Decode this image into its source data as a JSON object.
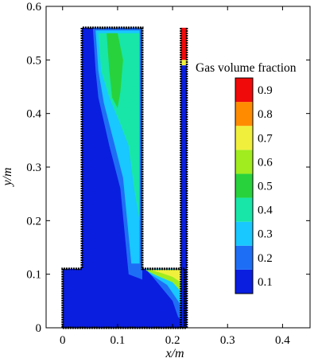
{
  "chart_data": {
    "type": "heatmap",
    "title": "",
    "xlabel": "x/m",
    "ylabel": "y/m",
    "xlim": [
      -0.03,
      0.45
    ],
    "ylim": [
      0,
      0.6
    ],
    "x_ticks": [
      "0",
      "0.1",
      "0.2",
      "0.3",
      "0.4"
    ],
    "y_ticks": [
      "0",
      "0.1",
      "0.2",
      "0.3",
      "0.4",
      "0.5",
      "0.6"
    ],
    "grid": false,
    "legend": {
      "title": "Gas volume fraction",
      "placement": "right",
      "levels": [
        "0.1",
        "0.2",
        "0.3",
        "0.4",
        "0.5",
        "0.6",
        "0.7",
        "0.8",
        "0.9"
      ],
      "colors": [
        "#0a1ee0",
        "#1e6ef5",
        "#18c8ff",
        "#18e6a8",
        "#28d23c",
        "#a0ec1e",
        "#f0f03c",
        "#ff8c00",
        "#f00a0a"
      ]
    },
    "domain_outline": [
      [
        0,
        0
      ],
      [
        0.222,
        0
      ],
      [
        0.222,
        0.11
      ],
      [
        0.215,
        0.11
      ],
      [
        0.215,
        0.11
      ],
      [
        0.145,
        0.11
      ],
      [
        0.145,
        0.56
      ],
      [
        0.035,
        0.56
      ],
      [
        0.035,
        0.11
      ],
      [
        0,
        0.11
      ]
    ],
    "riser_pipe": {
      "x": [
        0.215,
        0.226
      ],
      "y": [
        0.0,
        0.56
      ]
    },
    "gas_fraction_regions": [
      {
        "level": 0.1,
        "points": [
          [
            0,
            0
          ],
          [
            0.222,
            0
          ],
          [
            0.222,
            0.11
          ],
          [
            0.145,
            0.11
          ],
          [
            0.145,
            0.56
          ],
          [
            0.035,
            0.56
          ],
          [
            0.035,
            0.11
          ],
          [
            0,
            0.11
          ]
        ]
      },
      {
        "level": 0.2,
        "points": [
          [
            0.055,
            0.56
          ],
          [
            0.145,
            0.56
          ],
          [
            0.145,
            0.09
          ],
          [
            0.12,
            0.1
          ],
          [
            0.105,
            0.26
          ],
          [
            0.085,
            0.34
          ],
          [
            0.065,
            0.43
          ],
          [
            0.06,
            0.48
          ]
        ]
      },
      {
        "level": 0.3,
        "points": [
          [
            0.06,
            0.555
          ],
          [
            0.14,
            0.555
          ],
          [
            0.14,
            0.12
          ],
          [
            0.125,
            0.12
          ],
          [
            0.11,
            0.28
          ],
          [
            0.095,
            0.34
          ],
          [
            0.075,
            0.42
          ],
          [
            0.065,
            0.48
          ]
        ]
      },
      {
        "level": 0.4,
        "points": [
          [
            0.065,
            0.55
          ],
          [
            0.14,
            0.55
          ],
          [
            0.14,
            0.2
          ],
          [
            0.13,
            0.26
          ],
          [
            0.12,
            0.34
          ],
          [
            0.105,
            0.38
          ],
          [
            0.085,
            0.43
          ],
          [
            0.07,
            0.48
          ]
        ]
      },
      {
        "level": 0.5,
        "points": [
          [
            0.08,
            0.55
          ],
          [
            0.1,
            0.55
          ],
          [
            0.11,
            0.5
          ],
          [
            0.105,
            0.44
          ],
          [
            0.1,
            0.41
          ],
          [
            0.09,
            0.43
          ],
          [
            0.085,
            0.48
          ]
        ]
      },
      {
        "level": 0.2,
        "points": [
          [
            0.2,
            0.11
          ],
          [
            0.222,
            0.11
          ],
          [
            0.222,
            0.01
          ],
          [
            0.21,
            0.02
          ],
          [
            0.2,
            0.05
          ],
          [
            0.16,
            0.1
          ]
        ]
      },
      {
        "level": 0.3,
        "points": [
          [
            0.15,
            0.11
          ],
          [
            0.222,
            0.11
          ],
          [
            0.222,
            0.03
          ],
          [
            0.21,
            0.05
          ],
          [
            0.19,
            0.08
          ],
          [
            0.16,
            0.1
          ]
        ]
      },
      {
        "level": 0.6,
        "points": [
          [
            0.15,
            0.108
          ],
          [
            0.222,
            0.108
          ],
          [
            0.222,
            0.06
          ],
          [
            0.2,
            0.085
          ],
          [
            0.17,
            0.098
          ]
        ]
      },
      {
        "level": 0.7,
        "points": [
          [
            0.16,
            0.108
          ],
          [
            0.222,
            0.108
          ],
          [
            0.222,
            0.08
          ],
          [
            0.2,
            0.095
          ],
          [
            0.18,
            0.102
          ]
        ]
      },
      {
        "level": 0.1,
        "points": [
          [
            0.215,
            0.0
          ],
          [
            0.226,
            0.0
          ],
          [
            0.226,
            0.49
          ],
          [
            0.215,
            0.49
          ]
        ]
      },
      {
        "level": 0.7,
        "points": [
          [
            0.215,
            0.49
          ],
          [
            0.226,
            0.49
          ],
          [
            0.226,
            0.5
          ],
          [
            0.215,
            0.5
          ]
        ]
      },
      {
        "level": 0.9,
        "points": [
          [
            0.215,
            0.5
          ],
          [
            0.226,
            0.5
          ],
          [
            0.226,
            0.56
          ],
          [
            0.215,
            0.56
          ]
        ]
      }
    ]
  }
}
